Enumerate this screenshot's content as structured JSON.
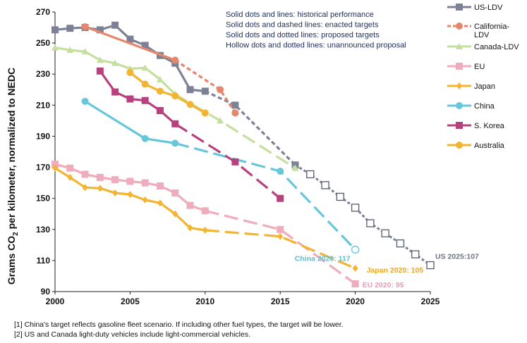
{
  "chart_data": {
    "type": "line",
    "ylabel_pre": "Grams CO",
    "ylabel_sub": "2",
    "ylabel_post": " per kilometer, normalized to NEDC",
    "xlim": [
      2000,
      2025
    ],
    "ylim": [
      90,
      270
    ],
    "x_ticks": [
      2000,
      2005,
      2010,
      2015,
      2020,
      2025
    ],
    "y_ticks": [
      90,
      110,
      130,
      150,
      170,
      190,
      210,
      230,
      250,
      270
    ],
    "notes": [
      "Solid dots and lines: historical performance",
      "Solid dots and dashed lines: enacted targets",
      "Solid dots and dotted lines: proposed targets",
      "Hollow dots and dotted lines: unannounced proposal"
    ],
    "footnotes": [
      "[1] China's target reflects gasoline fleet scenario. If including other fuel types, the target will be lower.",
      "[2] US and Canada light-duty vehicles include light-commercial vehicles."
    ],
    "series": [
      {
        "name": "US-LDV",
        "legend": [
          "US-LDV"
        ],
        "color": "#7d8196",
        "marker": "square",
        "historical": [
          [
            2000,
            258.5
          ],
          [
            2001,
            259.5
          ],
          [
            2002,
            260
          ],
          [
            2003,
            258.5
          ],
          [
            2004,
            261.5
          ],
          [
            2005,
            252.5
          ],
          [
            2006,
            248.5
          ],
          [
            2007,
            242
          ],
          [
            2008,
            237
          ],
          [
            2009,
            220
          ],
          [
            2010,
            219
          ]
        ],
        "enacted": [
          [
            2010,
            219
          ],
          [
            2012,
            210
          ],
          [
            2016,
            171.5
          ]
        ],
        "unannounced": [
          [
            2017,
            165.5
          ],
          [
            2018,
            158.5
          ],
          [
            2019,
            151
          ],
          [
            2020,
            144
          ],
          [
            2021,
            134
          ],
          [
            2022,
            127.5
          ],
          [
            2023,
            121
          ],
          [
            2024,
            114
          ],
          [
            2025,
            107
          ]
        ],
        "end_label": "US 2025:107"
      },
      {
        "name": "California-LDV",
        "legend": [
          "California-",
          "LDV"
        ],
        "color": "#e8866b",
        "marker": "circle",
        "historical": [
          [
            2002,
            260.5
          ],
          [
            2008,
            239
          ]
        ],
        "enacted": [
          [
            2008,
            239
          ],
          [
            2011,
            220
          ],
          [
            2012,
            205
          ]
        ]
      },
      {
        "name": "Canada-LDV",
        "legend": [
          "Canada-LDV"
        ],
        "color": "#c5df9e",
        "marker": "triangle",
        "historical": [
          [
            2000,
            247
          ],
          [
            2001,
            245.5
          ],
          [
            2002,
            244.5
          ],
          [
            2003,
            239
          ],
          [
            2004,
            237
          ],
          [
            2005,
            233.5
          ],
          [
            2006,
            234
          ],
          [
            2007,
            226.5
          ],
          [
            2008,
            217
          ]
        ],
        "enacted": [
          [
            2008,
            217
          ],
          [
            2011,
            200
          ],
          [
            2016,
            169.5
          ]
        ]
      },
      {
        "name": "EU",
        "legend": [
          "EU"
        ],
        "color": "#efacbd",
        "marker": "square",
        "historical": [
          [
            2000,
            172
          ],
          [
            2001,
            169.5
          ],
          [
            2002,
            165.5
          ],
          [
            2003,
            163.5
          ],
          [
            2004,
            162
          ],
          [
            2005,
            161
          ],
          [
            2006,
            160
          ],
          [
            2007,
            158
          ],
          [
            2008,
            153.5
          ],
          [
            2009,
            145.5
          ],
          [
            2010,
            142
          ]
        ],
        "enacted": [
          [
            2010,
            142
          ],
          [
            2015,
            130
          ],
          [
            2020,
            95
          ]
        ],
        "end_label": "EU 2020: 95"
      },
      {
        "name": "Japan",
        "legend": [
          "Japan"
        ],
        "color": "#f2b431",
        "marker": "diamond",
        "historical": [
          [
            2000,
            169.5
          ],
          [
            2001,
            163.5
          ],
          [
            2002,
            157
          ],
          [
            2003,
            156.5
          ],
          [
            2004,
            153.5
          ],
          [
            2005,
            152.5
          ],
          [
            2006,
            149
          ],
          [
            2007,
            147
          ],
          [
            2008,
            140
          ],
          [
            2009,
            131
          ],
          [
            2010,
            129.5
          ]
        ],
        "enacted": [
          [
            2010,
            129.5
          ],
          [
            2015,
            125.5
          ],
          [
            2020,
            105
          ]
        ],
        "end_label": "Japan 2020: 105"
      },
      {
        "name": "China",
        "legend": [
          "China"
        ],
        "color": "#66c7da",
        "marker": "circle",
        "historical": [
          [
            2002,
            212.5
          ],
          [
            2006,
            188.5
          ],
          [
            2008,
            185.5
          ]
        ],
        "enacted": [
          [
            2008,
            185.5
          ],
          [
            2015,
            167.5
          ],
          [
            2020,
            117
          ]
        ],
        "end_label": "China 2020: 117"
      },
      {
        "name": "S. Korea",
        "legend": [
          "S. Korea"
        ],
        "color": "#b8407c",
        "marker": "square",
        "historical": [
          [
            2003,
            232
          ],
          [
            2004,
            218.5
          ],
          [
            2005,
            214
          ],
          [
            2006,
            213
          ],
          [
            2007,
            206.5
          ],
          [
            2008,
            198
          ]
        ],
        "enacted": [
          [
            2008,
            198
          ],
          [
            2012,
            173.5
          ],
          [
            2015,
            150
          ]
        ]
      },
      {
        "name": "Australia",
        "legend": [
          "Australia"
        ],
        "color": "#f2b431",
        "marker": "circle",
        "historical": [
          [
            2005,
            231
          ],
          [
            2006,
            223.5
          ],
          [
            2007,
            219
          ],
          [
            2008,
            216
          ],
          [
            2009,
            210.5
          ],
          [
            2010,
            205
          ]
        ],
        "proposed": [
          [
            2010,
            205
          ]
        ]
      }
    ]
  }
}
